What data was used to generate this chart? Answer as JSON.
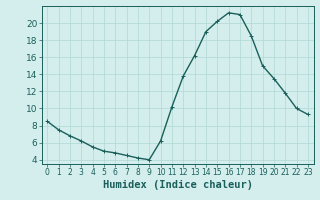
{
  "x": [
    0,
    1,
    2,
    3,
    4,
    5,
    6,
    7,
    8,
    9,
    10,
    11,
    12,
    13,
    14,
    15,
    16,
    17,
    18,
    19,
    20,
    21,
    22,
    23
  ],
  "y": [
    8.5,
    7.5,
    6.8,
    6.2,
    5.5,
    5.0,
    4.8,
    4.5,
    4.2,
    4.0,
    6.2,
    10.2,
    13.8,
    16.2,
    19.0,
    20.2,
    21.2,
    21.0,
    18.5,
    15.0,
    13.5,
    11.8,
    10.0,
    9.3
  ],
  "line_color": "#1a5f5a",
  "marker": "+",
  "marker_size": 3,
  "bg_color": "#d4eeed",
  "grid_color": "#b0d8d4",
  "xlabel": "Humidex (Indice chaleur)",
  "xlabel_fontsize": 7.5,
  "ylabel_ticks": [
    4,
    6,
    8,
    10,
    12,
    14,
    16,
    18,
    20
  ],
  "xlim": [
    -0.5,
    23.5
  ],
  "ylim": [
    3.5,
    22.0
  ],
  "xtick_labels": [
    "0",
    "1",
    "2",
    "3",
    "4",
    "5",
    "6",
    "7",
    "8",
    "9",
    "10",
    "11",
    "12",
    "13",
    "14",
    "15",
    "16",
    "17",
    "18",
    "19",
    "20",
    "21",
    "22",
    "23"
  ],
  "tick_color": "#1a5f5a",
  "ytick_fontsize": 6.5,
  "xtick_fontsize": 5.5,
  "spine_color": "#1a5f5a",
  "linewidth": 1.0,
  "marker_linewidth": 0.7
}
